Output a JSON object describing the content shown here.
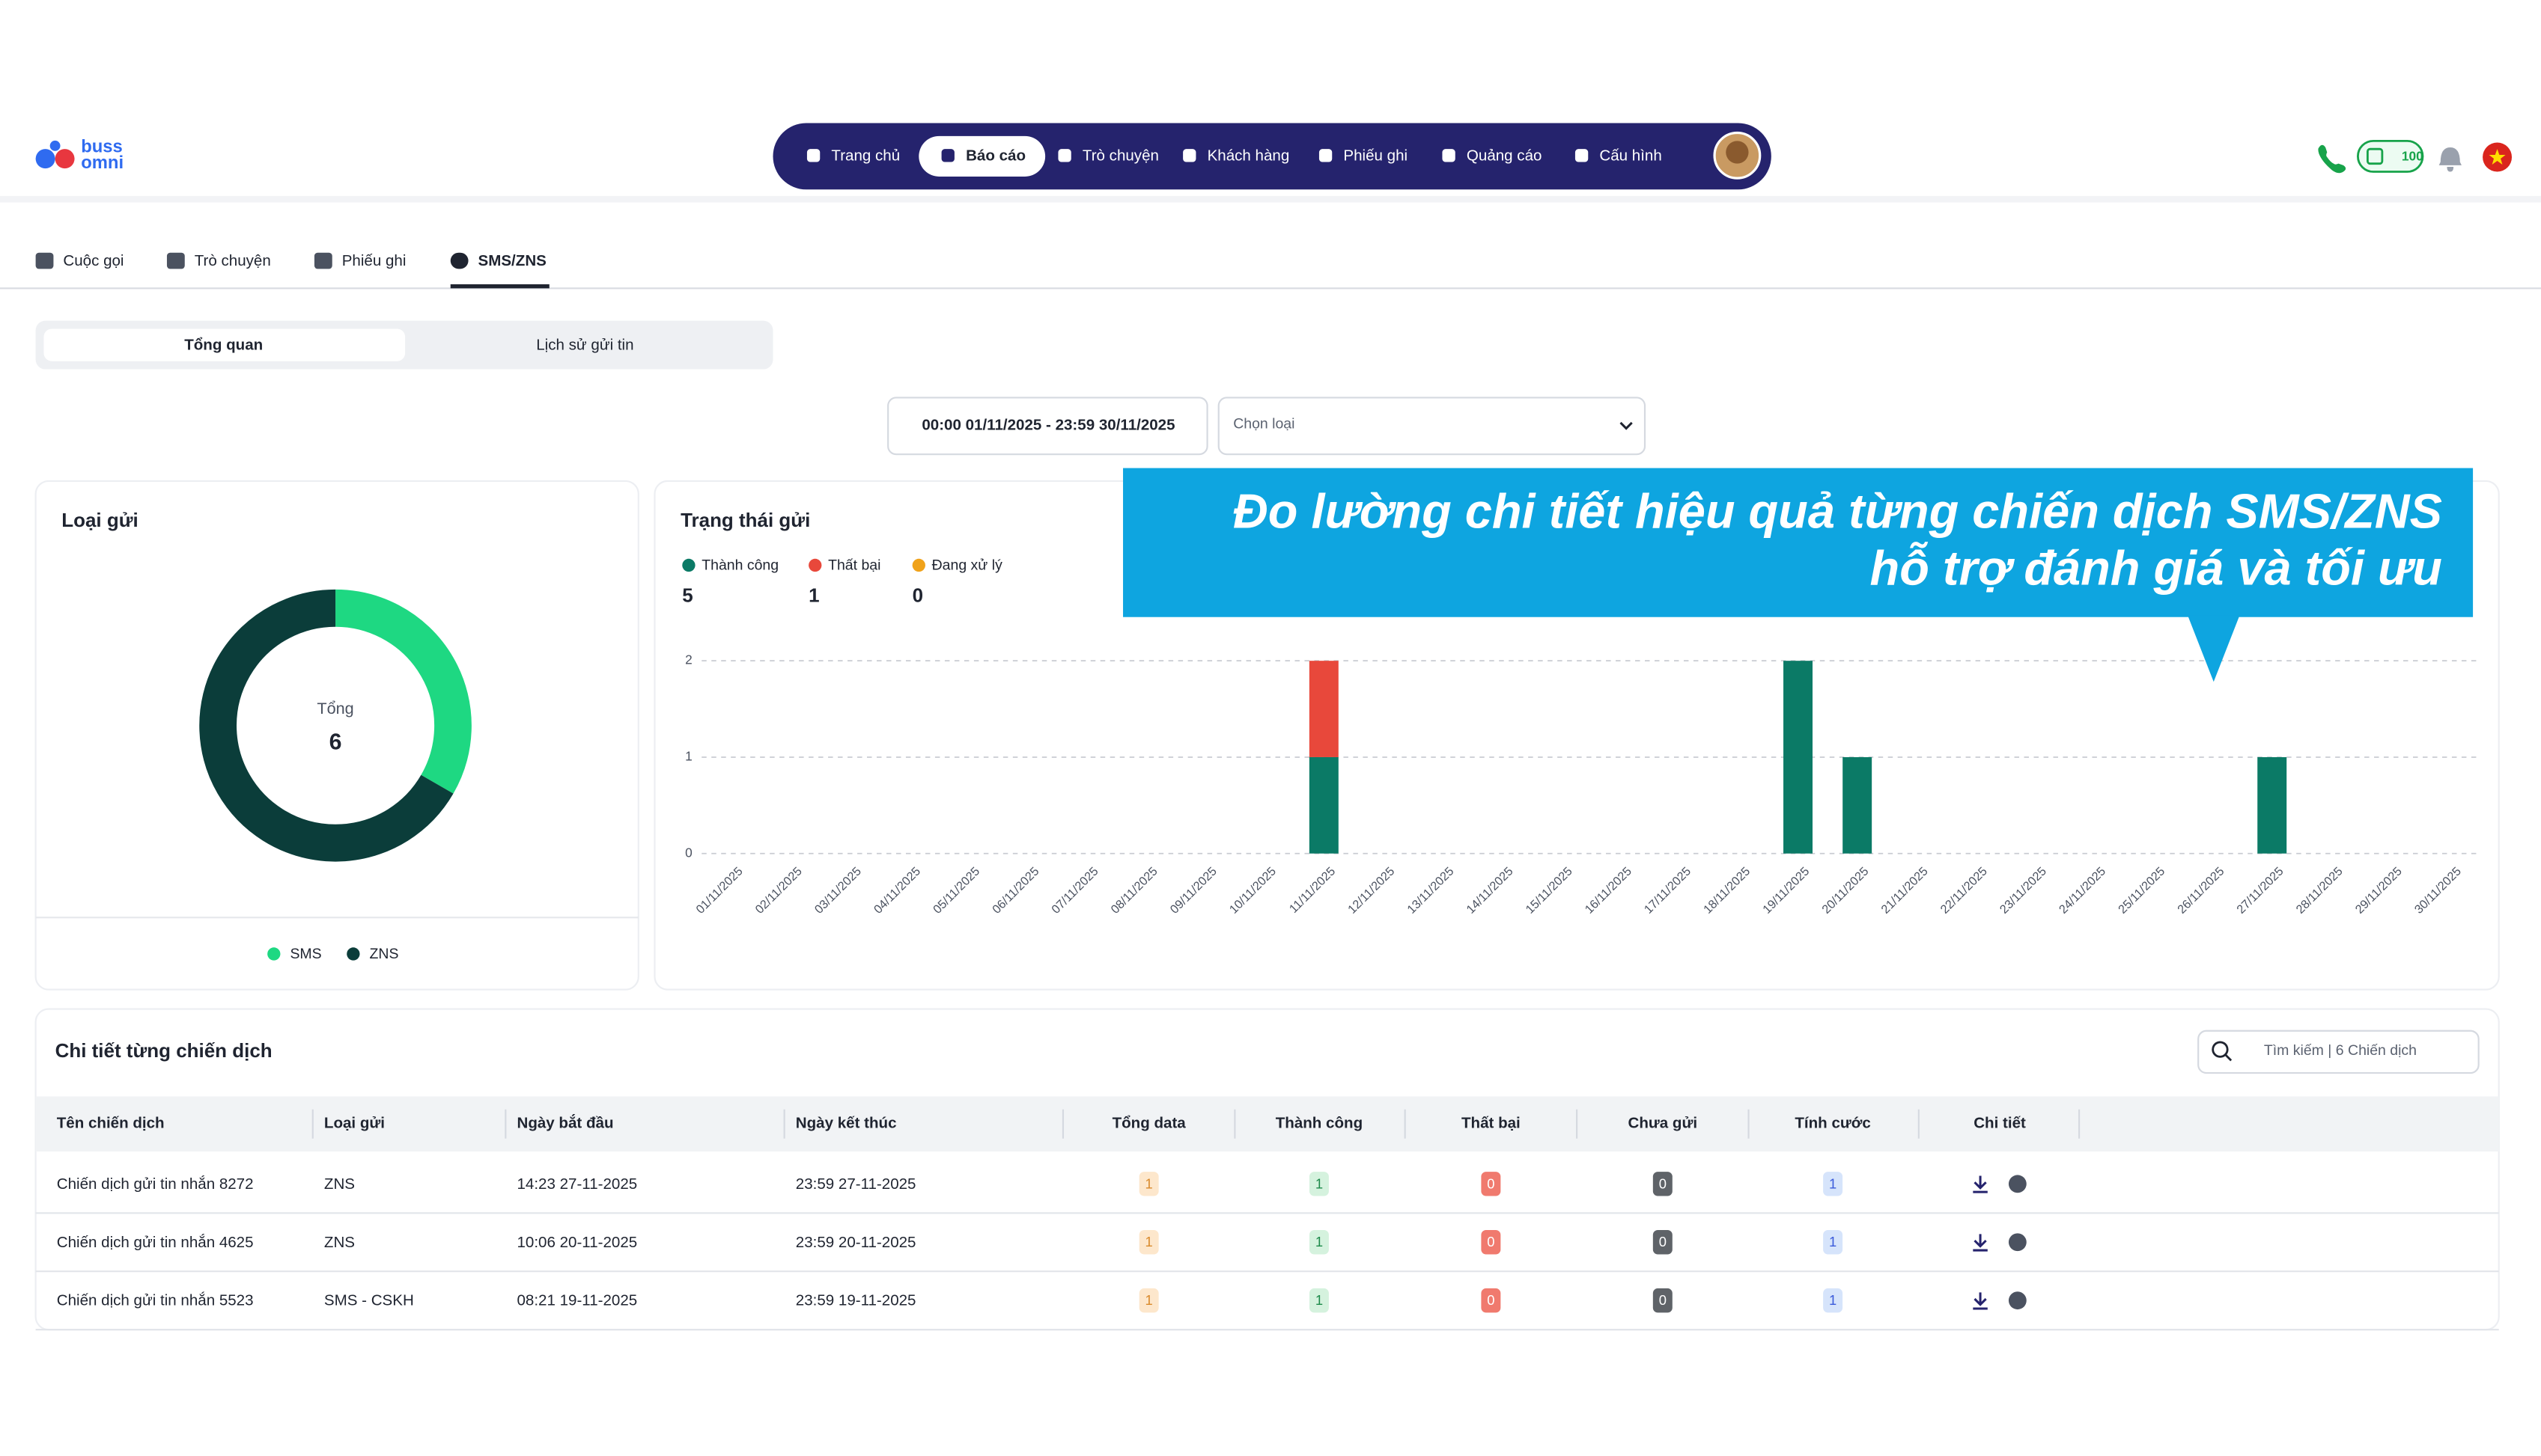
{
  "header": {
    "brand": [
      "buss",
      "omni"
    ],
    "nav": [
      "Trang chủ",
      "Báo cáo",
      "Trò chuyện",
      "Khách hàng",
      "Phiếu ghi",
      "Quảng cáo",
      "Cấu hình"
    ],
    "active_nav": 1,
    "credit": 100
  },
  "subtabs": {
    "items": [
      "Cuộc gọi",
      "Trò chuyện",
      "Phiếu ghi",
      "SMS/ZNS"
    ],
    "active": 3
  },
  "view_tabs": {
    "items": [
      "Tổng quan",
      "Lịch sử gửi tin"
    ],
    "active": 0
  },
  "filters": {
    "date_range": "00:00 01/11/2025 - 23:59 30/11/2025",
    "type_placeholder": "Chọn loại"
  },
  "callout": [
    "Đo lường chi tiết hiệu quả từng chiến dịch SMS/ZNS",
    "hỗ trợ đánh giá và tối ưu"
  ],
  "chart_data": [
    {
      "type": "donut",
      "title": "Loại gửi",
      "center_label": "Tổng",
      "center_value": 6,
      "categories": [
        "SMS",
        "ZNS"
      ],
      "values": [
        2,
        4
      ],
      "colors": [
        "#1ed882",
        "#0b3d3a"
      ]
    },
    {
      "type": "stacked-bar",
      "title": "Trạng thái gửi",
      "categories": [
        "01/11/2025",
        "02/11/2025",
        "03/11/2025",
        "04/11/2025",
        "05/11/2025",
        "06/11/2025",
        "07/11/2025",
        "08/11/2025",
        "09/11/2025",
        "10/11/2025",
        "11/11/2025",
        "12/11/2025",
        "13/11/2025",
        "14/11/2025",
        "15/11/2025",
        "16/11/2025",
        "17/11/2025",
        "18/11/2025",
        "19/11/2025",
        "20/11/2025",
        "21/11/2025",
        "22/11/2025",
        "23/11/2025",
        "24/11/2025",
        "25/11/2025",
        "26/11/2025",
        "27/11/2025",
        "28/11/2025",
        "29/11/2025",
        "30/11/2025"
      ],
      "series": [
        {
          "name": "Thành công",
          "color": "#0b7a66",
          "total": 5,
          "values": [
            0,
            0,
            0,
            0,
            0,
            0,
            0,
            0,
            0,
            0,
            1,
            0,
            0,
            0,
            0,
            0,
            0,
            0,
            2,
            1,
            0,
            0,
            0,
            0,
            0,
            0,
            1,
            0,
            0,
            0
          ]
        },
        {
          "name": "Thất bại",
          "color": "#e8483b",
          "total": 1,
          "values": [
            0,
            0,
            0,
            0,
            0,
            0,
            0,
            0,
            0,
            0,
            1,
            0,
            0,
            0,
            0,
            0,
            0,
            0,
            0,
            0,
            0,
            0,
            0,
            0,
            0,
            0,
            0,
            0,
            0,
            0
          ]
        },
        {
          "name": "Đang xử lý",
          "color": "#f0a21a",
          "total": 0,
          "values": [
            0,
            0,
            0,
            0,
            0,
            0,
            0,
            0,
            0,
            0,
            0,
            0,
            0,
            0,
            0,
            0,
            0,
            0,
            0,
            0,
            0,
            0,
            0,
            0,
            0,
            0,
            0,
            0,
            0,
            0
          ]
        }
      ],
      "ylim": [
        0,
        2
      ],
      "yticks": [
        0,
        1,
        2
      ],
      "grid": true
    }
  ],
  "table": {
    "title": "Chi tiết từng chiến dịch",
    "search_placeholder": "Tìm kiếm | 6 Chiến dịch",
    "columns": [
      "Tên chiến dịch",
      "Loại gửi",
      "Ngày bắt đầu",
      "Ngày kết thúc",
      "Tổng data",
      "Thành công",
      "Thất bại",
      "Chưa gửi",
      "Tính cước",
      "Chi tiết"
    ],
    "rows": [
      [
        "Chiến dịch gửi tin nhắn 8272",
        "ZNS",
        "14:23 27-11-2025",
        "23:59 27-11-2025",
        1,
        1,
        0,
        0,
        1
      ],
      [
        "Chiến dịch gửi tin nhắn 4625",
        "ZNS",
        "10:06 20-11-2025",
        "23:59 20-11-2025",
        1,
        1,
        0,
        0,
        1
      ],
      [
        "Chiến dịch gửi tin nhắn 5523",
        "SMS - CSKH",
        "08:21 19-11-2025",
        "23:59 19-11-2025",
        1,
        1,
        0,
        0,
        1
      ]
    ]
  }
}
